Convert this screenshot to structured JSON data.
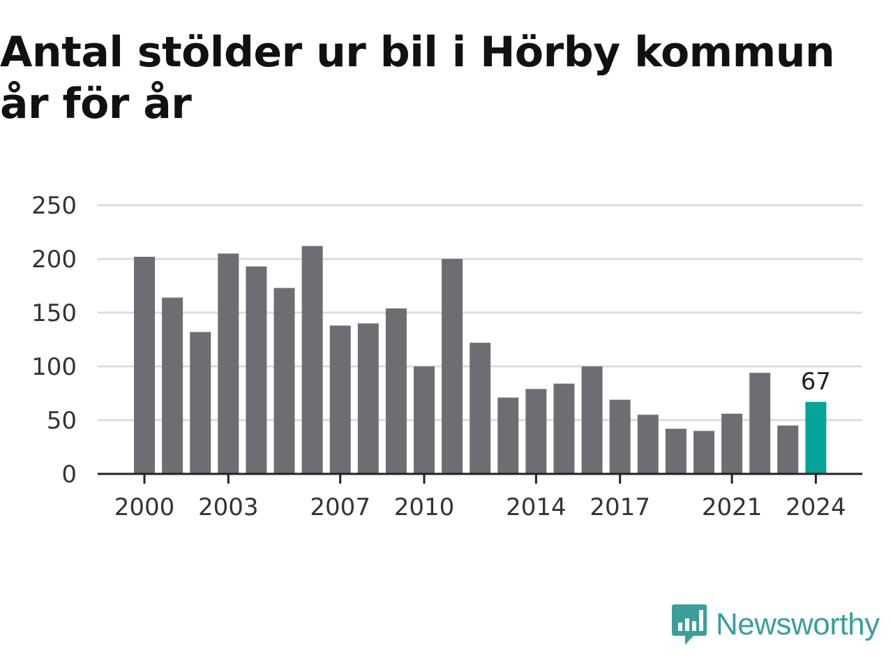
{
  "chart_data": {
    "type": "bar",
    "title": "Antal stölder ur bil i Hörby kommun år för år",
    "categories": [
      "2000",
      "2001",
      "2002",
      "2003",
      "2004",
      "2005",
      "2006",
      "2007",
      "2008",
      "2009",
      "2010",
      "2011",
      "2012",
      "2013",
      "2014",
      "2015",
      "2016",
      "2017",
      "2018",
      "2019",
      "2020",
      "2021",
      "2022",
      "2023",
      "2024"
    ],
    "values": [
      202,
      164,
      132,
      205,
      193,
      173,
      212,
      138,
      140,
      154,
      100,
      200,
      122,
      71,
      79,
      84,
      100,
      69,
      55,
      42,
      40,
      56,
      94,
      45,
      67
    ],
    "x_tick_labels": [
      "2000",
      "2003",
      "2007",
      "2010",
      "2014",
      "2017",
      "2021",
      "2024"
    ],
    "y_ticks": [
      0,
      50,
      100,
      150,
      200,
      250
    ],
    "ylim": [
      0,
      250
    ],
    "xlabel": "",
    "ylabel": "",
    "grid": true,
    "highlight": {
      "category": "2024",
      "label": "67"
    },
    "colors": {
      "bar": "#6e6d72",
      "highlight": "#06a399"
    }
  },
  "brand": {
    "name": "Newsworthy",
    "icon": "newsworthy-logo-icon",
    "color": "#3a9f99"
  }
}
